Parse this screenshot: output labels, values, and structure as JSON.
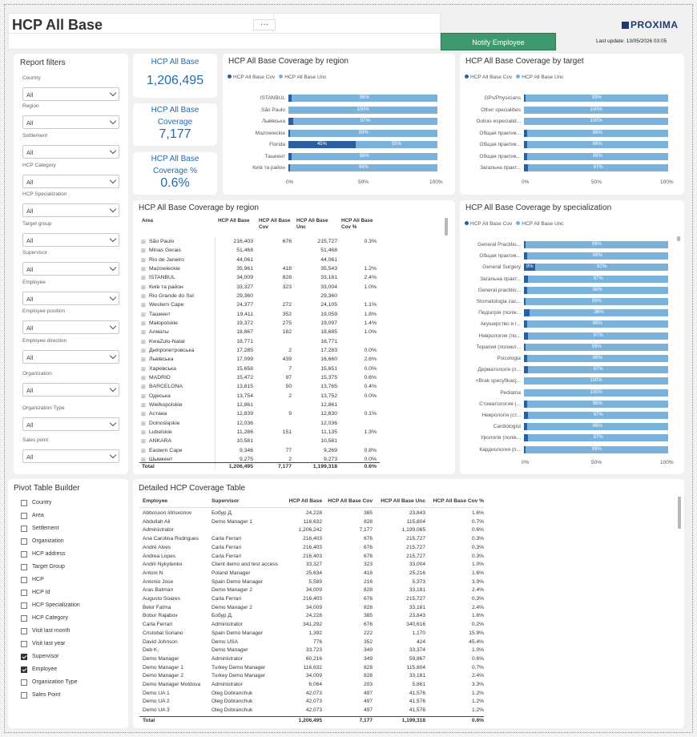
{
  "header": {
    "title": "HCP All Base",
    "more_label": "···",
    "logo": "PROXIMA",
    "notify_label": "Notify Employee",
    "last_update": "Last update: 13/05/2026 03:05"
  },
  "filters": {
    "title": "Report filters",
    "items": [
      {
        "label": "Country",
        "value": "All"
      },
      {
        "label": "Region",
        "value": "All"
      },
      {
        "label": "Settlement",
        "value": "All"
      },
      {
        "label": "HCP Category",
        "value": "All"
      },
      {
        "label": "HCP Specialization",
        "value": "All"
      },
      {
        "label": "Target group",
        "value": "All"
      },
      {
        "label": "Supervisor",
        "value": "All"
      },
      {
        "label": "Employee",
        "value": "All"
      },
      {
        "label": "Employee position",
        "value": "All"
      },
      {
        "label": "Employee direction",
        "value": "All"
      },
      {
        "label": "Organization",
        "value": "All"
      },
      {
        "label": "Organization Type",
        "value": "All"
      },
      {
        "label": "Sales point",
        "value": "All"
      }
    ]
  },
  "kpis": [
    {
      "label": "HCP All Base",
      "value": "1,206,495"
    },
    {
      "label": "HCP All Base Coverage",
      "value": "7,177"
    },
    {
      "label": "HCP All Base Coverage %",
      "value": "0.6%"
    }
  ],
  "colors": {
    "cov": "#2a5fa4",
    "unc": "#7ab2dc",
    "notify": "#3e9a6c"
  },
  "chart_data": [
    {
      "type": "bar",
      "title": "HCP All Base Coverage by region",
      "legend": [
        "HCP All Base Cov",
        "HCP All Base Unc"
      ],
      "categories": [
        "İSTANBUL",
        "São Paulo",
        "Львівська",
        "Mazowieckie",
        "Florida",
        "Ташкент",
        "Київ та район"
      ],
      "series": [
        {
          "name": "HCP All Base Cov",
          "values": [
            2,
            0,
            3,
            1,
            45,
            2,
            1
          ],
          "labels": [
            "",
            "",
            "",
            "",
            "45%",
            "",
            ""
          ]
        },
        {
          "name": "HCP All Base Unc",
          "values": [
            98,
            100,
            97,
            99,
            55,
            98,
            99
          ],
          "labels": [
            "98%",
            "100%",
            "97%",
            "99%",
            "55%",
            "98%",
            "99%"
          ]
        }
      ],
      "xticks": [
        "0%",
        "50%",
        "100%"
      ]
    },
    {
      "type": "bar",
      "title": "HCP All Base Coverage by target",
      "legend": [
        "HCP All Base Cov",
        "HCP All Base Unc"
      ],
      "categories": [
        "GPs/Physicians",
        "Other specialities",
        "Outras especialid...",
        "Общая практик...",
        "Общая практик...",
        "Общая практик...",
        "Загальна практ..."
      ],
      "series": [
        {
          "name": "HCP All Base Cov",
          "values": [
            1,
            0,
            0,
            2,
            2,
            2,
            3
          ],
          "labels": [
            "",
            "",
            "",
            "",
            "",
            "",
            ""
          ]
        },
        {
          "name": "HCP All Base Unc",
          "values": [
            99,
            100,
            100,
            98,
            98,
            98,
            97
          ],
          "labels": [
            "99%",
            "100%",
            "100%",
            "98%",
            "98%",
            "98%",
            "97%"
          ]
        }
      ],
      "xticks": [
        "0%",
        "50%",
        "100%"
      ]
    },
    {
      "type": "bar",
      "title": "HCP All Base Coverage by specialization",
      "legend": [
        "HCP All Base Cov",
        "HCP All Base Unc"
      ],
      "categories": [
        "General Practitio...",
        "Общая практик...",
        "General Surgery",
        "Загальна практ...",
        "General practitio...",
        "Stomatologia zac...",
        "Педіатрія (полік...",
        "Акушерство и г...",
        "Неврология (по...",
        "Терапия (поликл...",
        "Psicologia",
        "Дерматологія (п...",
        "<Brak specyfikacj...",
        "Pediatria",
        "Стоматология (...",
        "Неврологія (ст...",
        "Cardiologist",
        "Урологія (полік...",
        "Кардиология (п..."
      ],
      "series": [
        {
          "name": "HCP All Base Cov",
          "values": [
            1,
            2,
            8,
            3,
            2,
            1,
            4,
            2,
            3,
            1,
            2,
            3,
            0,
            0,
            2,
            3,
            2,
            3,
            1
          ],
          "labels": [
            "",
            "",
            "8%",
            "",
            "",
            "",
            "",
            "",
            "",
            "",
            "",
            "",
            "",
            "",
            "",
            "",
            "",
            "",
            ""
          ]
        },
        {
          "name": "HCP All Base Unc",
          "values": [
            99,
            98,
            92,
            97,
            98,
            99,
            96,
            98,
            97,
            99,
            98,
            97,
            100,
            100,
            98,
            97,
            98,
            97,
            99
          ],
          "labels": [
            "99%",
            "98%",
            "92%",
            "97%",
            "98%",
            "99%",
            "96%",
            "98%",
            "97%",
            "99%",
            "98%",
            "97%",
            "100%",
            "100%",
            "98%",
            "97%",
            "98%",
            "97%",
            "99%"
          ]
        }
      ],
      "xticks": [
        "0%",
        "50%",
        "100%"
      ]
    }
  ],
  "matrix": {
    "title": "HCP All Base Coverage by region",
    "headers": [
      "Area",
      "HCP All Base",
      "HCP All Base Cov",
      "HCP All Base Unc",
      "HCP All Base Cov %"
    ],
    "rows": [
      [
        "São Paulo",
        "216,403",
        "676",
        "215,727",
        "0.3%"
      ],
      [
        "Minas Gerais",
        "51,468",
        "",
        "51,468",
        ""
      ],
      [
        "Rio de Janeiro",
        "44,061",
        "",
        "44,061",
        ""
      ],
      [
        "Mazowieckie",
        "35,961",
        "418",
        "35,543",
        "1.2%"
      ],
      [
        "İSTANBUL",
        "34,009",
        "828",
        "33,181",
        "2.4%"
      ],
      [
        "Київ та район",
        "33,327",
        "323",
        "33,004",
        "1.0%"
      ],
      [
        "Rio Grande do Sul",
        "29,360",
        "",
        "29,360",
        ""
      ],
      [
        "Western Cape",
        "24,377",
        "272",
        "24,105",
        "1.1%"
      ],
      [
        "Ташкент",
        "19,411",
        "352",
        "19,059",
        "1.8%"
      ],
      [
        "Małopolskie",
        "19,372",
        "275",
        "19,097",
        "1.4%"
      ],
      [
        "Алматы",
        "18,867",
        "182",
        "18,685",
        "1.0%"
      ],
      [
        "KwaZulu-Natal",
        "18,771",
        "",
        "18,771",
        ""
      ],
      [
        "Дніпропетровська",
        "17,285",
        "2",
        "17,283",
        "0.0%"
      ],
      [
        "Львівська",
        "17,099",
        "439",
        "16,660",
        "2.6%"
      ],
      [
        "Харківська",
        "15,658",
        "7",
        "15,651",
        "0.0%"
      ],
      [
        "MADRID",
        "15,472",
        "97",
        "15,375",
        "0.6%"
      ],
      [
        "BARCELONA",
        "13,815",
        "50",
        "13,765",
        "0.4%"
      ],
      [
        "Одеська",
        "13,754",
        "2",
        "13,752",
        "0.0%"
      ],
      [
        "Wielkopolskie",
        "12,861",
        "",
        "12,861",
        ""
      ],
      [
        "Астана",
        "12,839",
        "9",
        "12,830",
        "0.1%"
      ],
      [
        "Dolnośląskie",
        "12,036",
        "",
        "12,036",
        ""
      ],
      [
        "Lubelskie",
        "11,286",
        "151",
        "11,135",
        "1.3%"
      ],
      [
        "ANKARA",
        "10,581",
        "",
        "10,581",
        ""
      ],
      [
        "Eastern Cape",
        "9,346",
        "77",
        "9,269",
        "0.8%"
      ],
      [
        "Шымкент",
        "9,275",
        "2",
        "9,273",
        "0.0%"
      ]
    ],
    "total": [
      "Total",
      "1,206,495",
      "7,177",
      "1,199,318",
      "0.6%"
    ]
  },
  "pivot": {
    "title": "Pivot Table Builder",
    "items": [
      {
        "label": "Country",
        "checked": false
      },
      {
        "label": "Area",
        "checked": false
      },
      {
        "label": "Settlement",
        "checked": false
      },
      {
        "label": "Organization",
        "checked": false
      },
      {
        "label": "HCP address",
        "checked": false
      },
      {
        "label": "Target Group",
        "checked": false
      },
      {
        "label": "HCP",
        "checked": false
      },
      {
        "label": "HCP Id",
        "checked": false
      },
      {
        "label": "HCP Specialization",
        "checked": false
      },
      {
        "label": "HCP Category",
        "checked": false
      },
      {
        "label": "Visit last month",
        "checked": false
      },
      {
        "label": "Visit last year",
        "checked": false
      },
      {
        "label": "Supervisor",
        "checked": true
      },
      {
        "label": "Employee",
        "checked": true
      },
      {
        "label": "Organization Type",
        "checked": false
      },
      {
        "label": "Sales Point",
        "checked": false
      }
    ]
  },
  "detail": {
    "title": "Detailed HCP Coverage Table",
    "headers": [
      "Employee",
      "Supervisor",
      "HCP All Base",
      "HCP All Base Cov",
      "HCP All Base Unc",
      "HCP All Base Cov %"
    ],
    "rows": [
      [
        "Abbosxon Idrisxonov",
        "Бобур Д.",
        "24,228",
        "385",
        "23,843",
        "1.6%"
      ],
      [
        "Abdullah Ali",
        "Demo Manager 1",
        "116,632",
        "828",
        "115,804",
        "0.7%"
      ],
      [
        "Administrator",
        "",
        "1,206,242",
        "7,177",
        "1,199,065",
        "0.6%"
      ],
      [
        "Ana Carolina Rodrigues",
        "Carla Ferrari",
        "216,403",
        "676",
        "215,727",
        "0.3%"
      ],
      [
        "André Alves",
        "Carla Ferrari",
        "216,403",
        "676",
        "215,727",
        "0.3%"
      ],
      [
        "Andrea Lopes",
        "Carla Ferrari",
        "216,403",
        "676",
        "215,727",
        "0.3%"
      ],
      [
        "Andrii Nykytenko",
        "Client demo and test access",
        "33,327",
        "323",
        "33,004",
        "1.0%"
      ],
      [
        "Antoni N.",
        "Poland Manager",
        "25,634",
        "418",
        "25,216",
        "1.6%"
      ],
      [
        "Antonio Jose",
        "Spain Demo Manager",
        "5,589",
        "216",
        "5,373",
        "3.9%"
      ],
      [
        "Aras Batman",
        "Demo Manager 2",
        "34,009",
        "828",
        "33,181",
        "2.4%"
      ],
      [
        "Augusto Soares",
        "Carla Ferrari",
        "216,403",
        "676",
        "215,727",
        "0.3%"
      ],
      [
        "Bekir Fatma",
        "Demo Manager 2",
        "34,009",
        "828",
        "33,181",
        "2.4%"
      ],
      [
        "Bobur Rajabov",
        "Бобур Д.",
        "24,228",
        "385",
        "23,843",
        "1.6%"
      ],
      [
        "Carla Ferrari",
        "Administrator",
        "341,292",
        "676",
        "340,616",
        "0.2%"
      ],
      [
        "Cristobal Soriano",
        "Spain Demo Manager",
        "1,392",
        "222",
        "1,170",
        "15.9%"
      ],
      [
        "David Johnson",
        "Demo USA",
        "776",
        "352",
        "424",
        "45.4%"
      ],
      [
        "Deb K.",
        "Demo Manager",
        "33,723",
        "349",
        "33,374",
        "1.0%"
      ],
      [
        "Demo Manager",
        "Administrator",
        "60,216",
        "349",
        "59,867",
        "0.6%"
      ],
      [
        "Demo Manager 1",
        "Turkey Demo Manager",
        "116,632",
        "828",
        "115,804",
        "0.7%"
      ],
      [
        "Demo Manager 2",
        "Turkey Demo Manager",
        "34,009",
        "828",
        "33,181",
        "2.4%"
      ],
      [
        "Demo Manager Moldova",
        "Administrator",
        "6,064",
        "203",
        "5,861",
        "3.3%"
      ],
      [
        "Demo UA 1",
        "Oleg Dobranchuk",
        "42,073",
        "497",
        "41,576",
        "1.2%"
      ],
      [
        "Demo UA 2",
        "Oleg Dobranchuk",
        "42,073",
        "497",
        "41,576",
        "1.2%"
      ],
      [
        "Demo UA 3",
        "Oleg Dobranchuk",
        "42,073",
        "497",
        "41,576",
        "1.2%"
      ]
    ],
    "total": [
      "Total",
      "",
      "1,206,495",
      "7,177",
      "1,199,318",
      "0.6%"
    ]
  }
}
